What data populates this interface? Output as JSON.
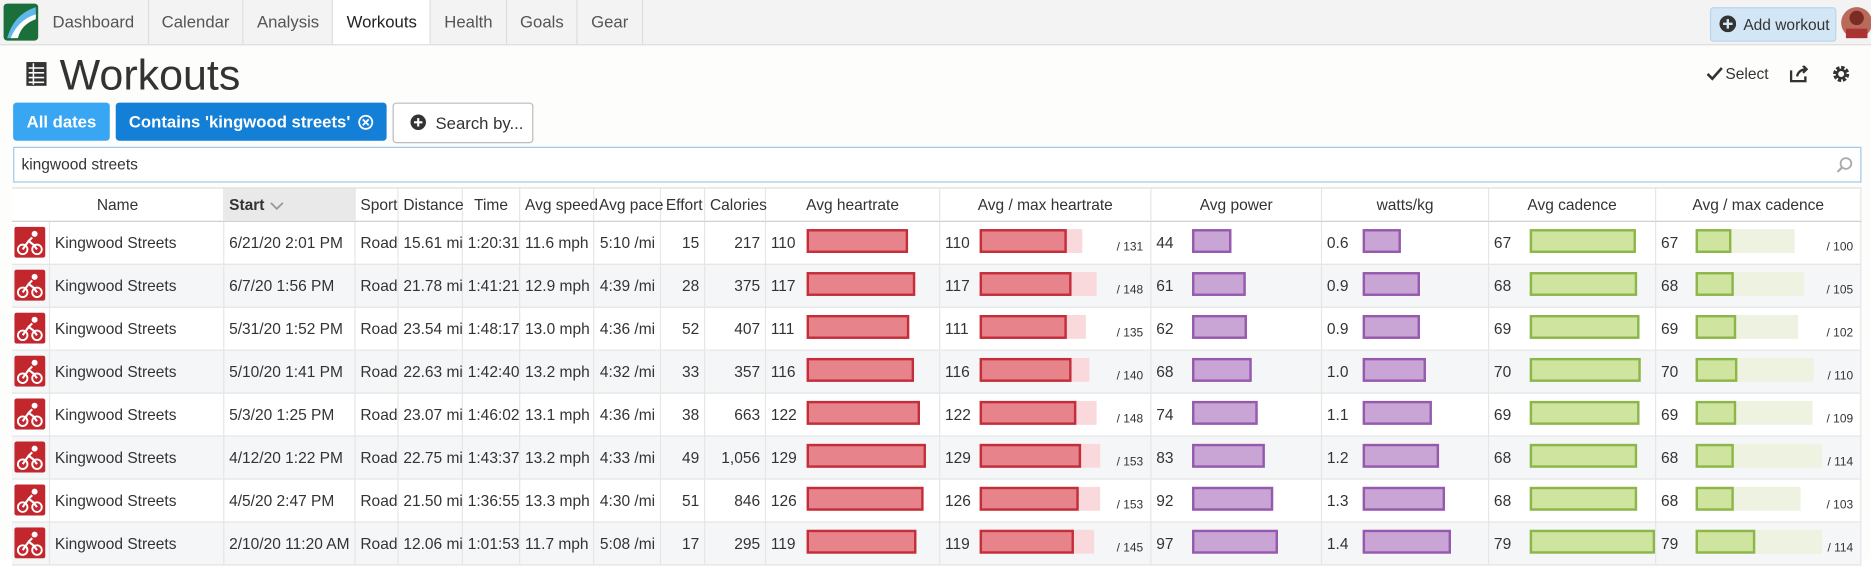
{
  "nav": {
    "items": [
      "Dashboard",
      "Calendar",
      "Analysis",
      "Workouts",
      "Health",
      "Goals",
      "Gear"
    ],
    "active": 3,
    "add_button": "Add workout"
  },
  "header": {
    "title": "Workouts",
    "select": "Select"
  },
  "filters": [
    "All dates",
    "Contains 'kingwood streets'",
    "Search by..."
  ],
  "search": "kingwood streets",
  "table": {
    "columns": [
      "Name",
      "Start",
      "Sport",
      "Distance",
      "Time",
      "Avg speed",
      "Avg pace",
      "Effort",
      "Calories",
      "Avg heartrate",
      "Avg / max heartrate",
      "Avg power",
      "watts/kg",
      "Avg cadence",
      "Avg / max cadence"
    ],
    "rows": [
      {
        "name": "Kingwood Streets",
        "start": "6/21/20 2:01 PM",
        "sport": "Road",
        "distance": "15.61 mi",
        "time": "1:20:31",
        "avg_speed": "11.6 mph",
        "avg_pace": "5:10 /mi",
        "effort": 15,
        "calories": 217,
        "avg_hr": 110,
        "max_hr": {
          "value": 131,
          "label": "/ 131"
        },
        "avg_power": 44,
        "watts_per_kg": 0.6,
        "avg_cadence": 67,
        "max_cadence": {
          "value": 100,
          "label": "/ 100"
        }
      },
      {
        "name": "Kingwood Streets",
        "start": "6/7/20 1:56 PM",
        "sport": "Road",
        "distance": "21.78 mi",
        "time": "1:41:21",
        "avg_speed": "12.9 mph",
        "avg_pace": "4:39 /mi",
        "effort": 28,
        "calories": 375,
        "avg_hr": 117,
        "max_hr": {
          "value": 148,
          "label": "/ 148"
        },
        "avg_power": 61,
        "watts_per_kg": 0.9,
        "avg_cadence": 68,
        "max_cadence": {
          "value": 105,
          "label": "/ 105"
        }
      },
      {
        "name": "Kingwood Streets",
        "start": "5/31/20 1:52 PM",
        "sport": "Road",
        "distance": "23.54 mi",
        "time": "1:48:17",
        "avg_speed": "13.0 mph",
        "avg_pace": "4:36 /mi",
        "effort": 52,
        "calories": 407,
        "avg_hr": 111,
        "max_hr": {
          "value": 135,
          "label": "/ 135"
        },
        "avg_power": 62,
        "watts_per_kg": 0.9,
        "avg_cadence": 69,
        "max_cadence": {
          "value": 102,
          "label": "/ 102"
        }
      },
      {
        "name": "Kingwood Streets",
        "start": "5/10/20 1:41 PM",
        "sport": "Road",
        "distance": "22.63 mi",
        "time": "1:42:40",
        "avg_speed": "13.2 mph",
        "avg_pace": "4:32 /mi",
        "effort": 33,
        "calories": 357,
        "avg_hr": 116,
        "max_hr": {
          "value": 140,
          "label": "/ 140"
        },
        "avg_power": 68,
        "watts_per_kg": {
          "value": 1,
          "label": "1.0"
        },
        "avg_cadence": 70,
        "max_cadence": {
          "value": 110,
          "label": "/ 110"
        }
      },
      {
        "name": "Kingwood Streets",
        "start": "5/3/20 1:25 PM",
        "sport": "Road",
        "distance": "23.07 mi",
        "time": "1:46:02",
        "avg_speed": "13.1 mph",
        "avg_pace": "4:36 /mi",
        "effort": 38,
        "calories": 663,
        "avg_hr": 122,
        "max_hr": {
          "value": 148,
          "label": "/ 148"
        },
        "avg_power": 74,
        "watts_per_kg": 1.1,
        "avg_cadence": 69,
        "max_cadence": {
          "value": 109,
          "label": "/ 109"
        }
      },
      {
        "name": "Kingwood Streets",
        "start": "4/12/20 1:22 PM",
        "sport": "Road",
        "distance": "22.75 mi",
        "time": "1:43:37",
        "avg_speed": "13.2 mph",
        "avg_pace": "4:33 /mi",
        "effort": 49,
        "calories": {
          "value": 1056,
          "label": "1,056"
        },
        "avg_hr": 129,
        "max_hr": {
          "value": 153,
          "label": "/ 153"
        },
        "avg_power": 83,
        "watts_per_kg": 1.2,
        "avg_cadence": 68,
        "max_cadence": {
          "value": 114,
          "label": "/ 114"
        }
      },
      {
        "name": "Kingwood Streets",
        "start": "4/5/20 2:47 PM",
        "sport": "Road",
        "distance": "21.50 mi",
        "time": "1:36:55",
        "avg_speed": "13.3 mph",
        "avg_pace": "4:30 /mi",
        "effort": 51,
        "calories": 846,
        "avg_hr": 126,
        "max_hr": {
          "value": 153,
          "label": "/ 153"
        },
        "avg_power": 92,
        "watts_per_kg": 1.3,
        "avg_cadence": 68,
        "max_cadence": {
          "value": 103,
          "label": "/ 103"
        }
      },
      {
        "name": "Kingwood Streets",
        "start": "2/10/20 11:20 AM",
        "sport": "Road",
        "distance": "12.06 mi",
        "time": "1:01:53",
        "avg_speed": "11.7 mph",
        "avg_pace": "5:08 /mi",
        "effort": 17,
        "calories": 295,
        "avg_hr": 119,
        "max_hr": {
          "value": 145,
          "label": "/ 145"
        },
        "avg_power": 97,
        "watts_per_kg": 1.4,
        "avg_cadence": 79,
        "max_cadence": {
          "value": 114,
          "label": "/ 114"
        }
      }
    ]
  }
}
